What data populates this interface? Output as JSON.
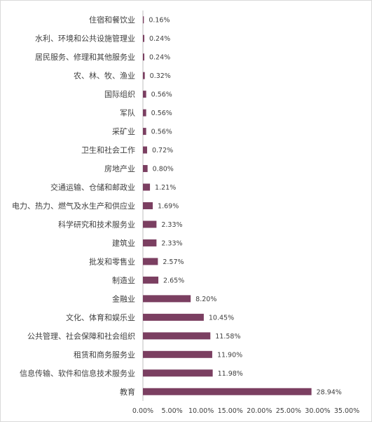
{
  "chart_data": {
    "type": "bar",
    "orientation": "horizontal",
    "title": "",
    "xlabel": "",
    "ylabel": "",
    "categories": [
      "住宿和餐饮业",
      "水利、环境和公共设施管理业",
      "居民服务、修理和其他服务业",
      "农、林、牧、渔业",
      "国际组织",
      "军队",
      "采矿业",
      "卫生和社会工作",
      "房地产业",
      "交通运输、仓储和邮政业",
      "电力、热力、燃气及水生产和供应业",
      "科学研究和技术服务业",
      "建筑业",
      "批发和零售业",
      "制造业",
      "金融业",
      "文化、体育和娱乐业",
      "公共管理、社会保障和社会组织",
      "租赁和商务服务业",
      "信息传输、软件和信息技术服务业",
      "教育"
    ],
    "values": [
      0.16,
      0.24,
      0.24,
      0.32,
      0.56,
      0.56,
      0.56,
      0.72,
      0.8,
      1.21,
      1.69,
      2.33,
      2.33,
      2.57,
      2.65,
      8.2,
      10.45,
      11.58,
      11.9,
      11.98,
      28.94
    ],
    "value_labels": [
      "0.16%",
      "0.24%",
      "0.24%",
      "0.32%",
      "0.56%",
      "0.56%",
      "0.56%",
      "0.72%",
      "0.80%",
      "1.21%",
      "1.69%",
      "2.33%",
      "2.33%",
      "2.57%",
      "2.65%",
      "8.20%",
      "10.45%",
      "11.58%",
      "11.90%",
      "11.98%",
      "28.94%"
    ],
    "xlim": [
      0,
      35
    ],
    "x_ticks": [
      0,
      5,
      10,
      15,
      20,
      25,
      30,
      35
    ],
    "x_tick_labels": [
      "0.00%",
      "5.00%",
      "10.00%",
      "15.00%",
      "20.00%",
      "25.00%",
      "30.00%",
      "35.00%"
    ],
    "grid": false,
    "legend": "none",
    "bar_color": "#7b3f61",
    "text_color": "#404040",
    "axis_color": "#bfbfbf"
  }
}
